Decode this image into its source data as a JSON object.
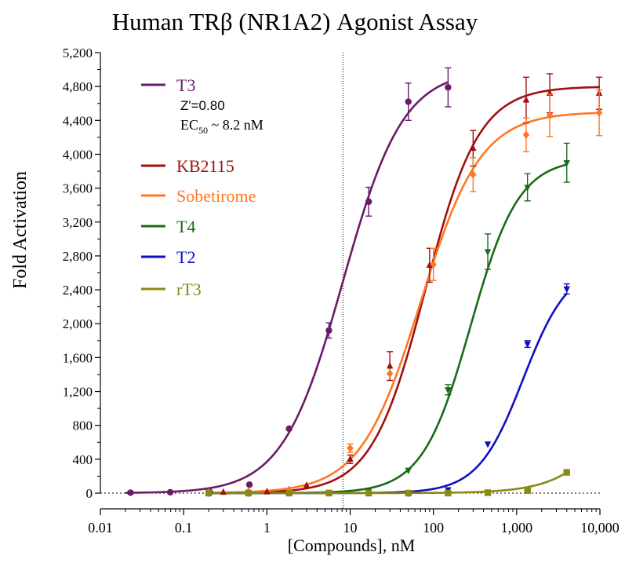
{
  "chart_data": {
    "type": "scatter",
    "title": "Human TRβ (NR1A2) Agonist Assay",
    "xlabel": "[Compounds], nM",
    "ylabel": "Fold Activation",
    "x_scale": "log",
    "xlim": [
      0.01,
      10000
    ],
    "ylim": [
      0,
      5200
    ],
    "x_ticks": [
      0.01,
      0.1,
      1,
      10,
      100,
      1000,
      10000
    ],
    "x_tick_labels": [
      "0.01",
      "0.1",
      "1",
      "10",
      "100",
      "1,000",
      "10,000"
    ],
    "y_ticks": [
      0,
      400,
      800,
      1200,
      1600,
      2000,
      2400,
      2800,
      3200,
      3600,
      4000,
      4400,
      4800,
      5200
    ],
    "y_tick_labels": [
      "0",
      "400",
      "800",
      "1,200",
      "1,600",
      "2,000",
      "2,400",
      "2,800",
      "3,200",
      "3,600",
      "4,000",
      "4,400",
      "4,800",
      "5,200"
    ],
    "reference_line_x": 8.2,
    "grid": false,
    "legend_position": "top-left",
    "annotation": {
      "zprime": "Z'=0.80",
      "ec50_prefix": "EC",
      "ec50_sub": "50",
      "ec50_suffix": " ~ 8.2 nM"
    },
    "series": [
      {
        "name": "T3",
        "color": "#6a1b6a",
        "marker": "circle",
        "points": [
          {
            "x": 0.023,
            "y": 5,
            "err": 0
          },
          {
            "x": 0.069,
            "y": 10,
            "err": 0
          },
          {
            "x": 0.206,
            "y": 15,
            "err": 0
          },
          {
            "x": 0.617,
            "y": 100,
            "err": 0
          },
          {
            "x": 1.85,
            "y": 760,
            "err": 0
          },
          {
            "x": 5.56,
            "y": 1920,
            "err": 90
          },
          {
            "x": 16.7,
            "y": 3440,
            "err": 170
          },
          {
            "x": 50,
            "y": 4620,
            "err": 220
          },
          {
            "x": 150,
            "y": 4790,
            "err": 230
          }
        ],
        "fit": {
          "bottom": 0,
          "top": 5000,
          "ec50": 8.2,
          "hill": 1.2,
          "x_from": 0.02,
          "x_to": 150
        }
      },
      {
        "name": "KB2115",
        "color": "#a01010",
        "marker": "triangle-up",
        "points": [
          {
            "x": 0.2,
            "y": 5,
            "err": 0
          },
          {
            "x": 0.3,
            "y": 10,
            "err": 0
          },
          {
            "x": 1,
            "y": 15,
            "err": 0
          },
          {
            "x": 3,
            "y": 90,
            "err": 0
          },
          {
            "x": 10,
            "y": 400,
            "err": 50
          },
          {
            "x": 30,
            "y": 1500,
            "err": 170
          },
          {
            "x": 90,
            "y": 2690,
            "err": 200
          },
          {
            "x": 300,
            "y": 4070,
            "err": 210
          },
          {
            "x": 1300,
            "y": 4640,
            "err": 270
          },
          {
            "x": 2500,
            "y": 4720,
            "err": 230
          },
          {
            "x": 9800,
            "y": 4720,
            "err": 190
          }
        ],
        "fit": {
          "bottom": 0,
          "top": 4800,
          "ec50": 80,
          "hill": 1.35,
          "x_from": 0.2,
          "x_to": 10000
        }
      },
      {
        "name": "Sobetirome",
        "color": "#ff7722",
        "marker": "diamond",
        "points": [
          {
            "x": 0.2,
            "y": 10,
            "err": 0
          },
          {
            "x": 0.6,
            "y": 20,
            "err": 0
          },
          {
            "x": 1.85,
            "y": 40,
            "err": 0
          },
          {
            "x": 10,
            "y": 530,
            "err": 50
          },
          {
            "x": 30,
            "y": 1410,
            "err": 0
          },
          {
            "x": 100,
            "y": 2700,
            "err": 190
          },
          {
            "x": 300,
            "y": 3760,
            "err": 200
          },
          {
            "x": 1300,
            "y": 4230,
            "err": 200
          },
          {
            "x": 2500,
            "y": 4460,
            "err": 250
          },
          {
            "x": 9800,
            "y": 4490,
            "err": 270
          }
        ],
        "fit": {
          "bottom": 0,
          "top": 4500,
          "ec50": 70,
          "hill": 1.2,
          "x_from": 0.2,
          "x_to": 10000
        }
      },
      {
        "name": "T4",
        "color": "#1a6a1a",
        "marker": "triangle-down",
        "points": [
          {
            "x": 0.2,
            "y": 0,
            "err": 0
          },
          {
            "x": 0.6,
            "y": 0,
            "err": 0
          },
          {
            "x": 1.85,
            "y": 5,
            "err": 0
          },
          {
            "x": 5.56,
            "y": 10,
            "err": 0
          },
          {
            "x": 16.7,
            "y": 30,
            "err": 0
          },
          {
            "x": 50,
            "y": 270,
            "err": 0
          },
          {
            "x": 150,
            "y": 1220,
            "err": 60
          },
          {
            "x": 450,
            "y": 2850,
            "err": 210
          },
          {
            "x": 1350,
            "y": 3610,
            "err": 160
          },
          {
            "x": 4000,
            "y": 3900,
            "err": 230
          }
        ],
        "fit": {
          "bottom": 0,
          "top": 3950,
          "ec50": 280,
          "hill": 1.5,
          "x_from": 0.2,
          "x_to": 4000
        }
      },
      {
        "name": "T2",
        "color": "#1010c0",
        "marker": "triangle-down",
        "points": [
          {
            "x": 50,
            "y": 0,
            "err": 0
          },
          {
            "x": 150,
            "y": 40,
            "err": 0
          },
          {
            "x": 450,
            "y": 580,
            "err": 0
          },
          {
            "x": 1350,
            "y": 1760,
            "err": 40
          },
          {
            "x": 4000,
            "y": 2410,
            "err": 60
          }
        ],
        "fit": {
          "bottom": 0,
          "top": 2700,
          "ec50": 1200,
          "hill": 1.6,
          "x_from": 0.2,
          "x_to": 4000
        }
      },
      {
        "name": "rT3",
        "color": "#8a8a10",
        "marker": "square",
        "points": [
          {
            "x": 0.2,
            "y": 0,
            "err": 0
          },
          {
            "x": 0.6,
            "y": 0,
            "err": 0
          },
          {
            "x": 1.85,
            "y": 0,
            "err": 0
          },
          {
            "x": 5.56,
            "y": 0,
            "err": 0
          },
          {
            "x": 16.7,
            "y": 0,
            "err": 0
          },
          {
            "x": 50,
            "y": 0,
            "err": 0
          },
          {
            "x": 150,
            "y": 0,
            "err": 0
          },
          {
            "x": 450,
            "y": 5,
            "err": 0
          },
          {
            "x": 1350,
            "y": 30,
            "err": 0
          },
          {
            "x": 4000,
            "y": 245,
            "err": 0
          }
        ],
        "fit": {
          "bottom": 0,
          "top": 3000,
          "ec50": 30000,
          "hill": 1.2,
          "x_from": 0.2,
          "x_to": 4000
        }
      }
    ]
  }
}
